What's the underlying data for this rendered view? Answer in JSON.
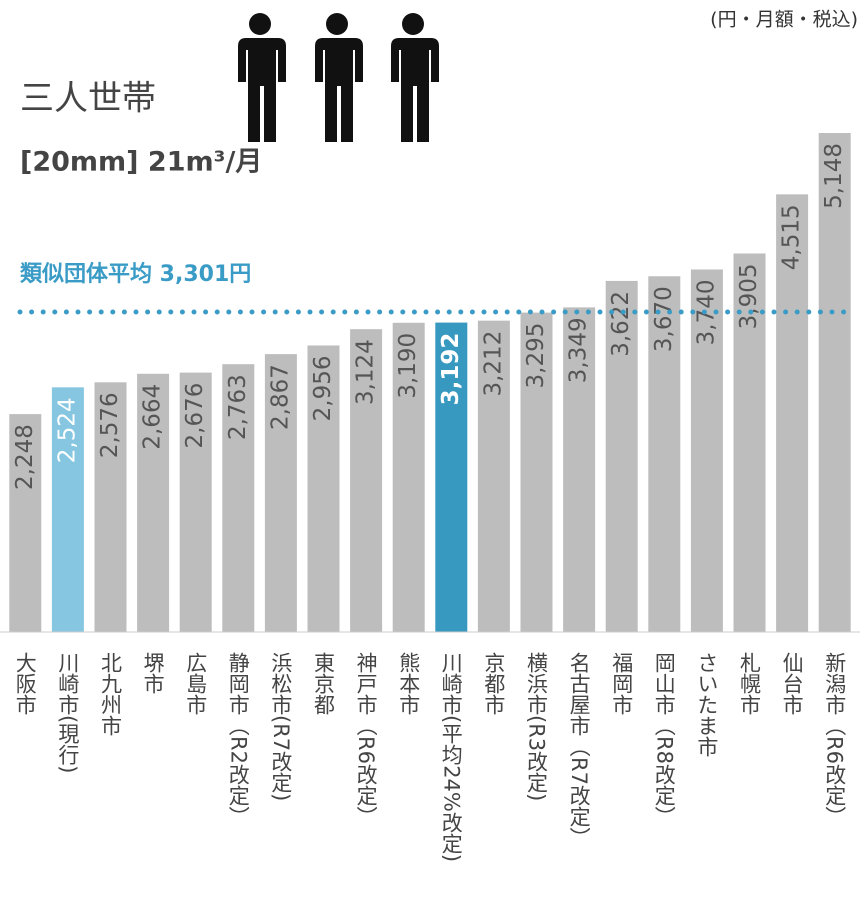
{
  "chart_data": {
    "type": "bar",
    "title": "三人世帯",
    "subtitle": "[20mm] 21m³/月",
    "unit_note": "(円・月額・税込)",
    "categories": [
      "大阪市",
      "川崎市(現行)",
      "北九州市",
      "堺市",
      "広島市",
      "静岡市（R2改定）",
      "浜松市(R7改定)",
      "東京都",
      "神戸市（R6改定）",
      "熊本市",
      "川崎市(平均24%改定)",
      "京都市",
      "横浜市(R3改定)",
      "名古屋市（R7改定）",
      "福岡市",
      "岡山市（R8改定）",
      "さいたま市",
      "札幌市",
      "仙台市",
      "新潟市（R6改定）"
    ],
    "values": [
      2248,
      2524,
      2576,
      2664,
      2676,
      2763,
      2867,
      2956,
      3124,
      3190,
      3192,
      3212,
      3295,
      3349,
      3622,
      3670,
      3740,
      3905,
      4515,
      5148
    ],
    "value_labels": [
      "2,248",
      "2,524",
      "2,576",
      "2,664",
      "2,676",
      "2,763",
      "2,867",
      "2,956",
      "3,124",
      "3,190",
      "3,192",
      "3,212",
      "3,295",
      "3,349",
      "3,622",
      "3,670",
      "3,740",
      "3,905",
      "4,515",
      "5,148"
    ],
    "colors": [
      "#bdbdbd",
      "#86c6e0",
      "#bdbdbd",
      "#bdbdbd",
      "#bdbdbd",
      "#bdbdbd",
      "#bdbdbd",
      "#bdbdbd",
      "#bdbdbd",
      "#bdbdbd",
      "#3798c0",
      "#bdbdbd",
      "#bdbdbd",
      "#bdbdbd",
      "#bdbdbd",
      "#bdbdbd",
      "#bdbdbd",
      "#bdbdbd",
      "#bdbdbd",
      "#bdbdbd"
    ],
    "average": {
      "value": 3301,
      "label": "類似団体平均 3,301円",
      "color": "#3a9cc6"
    }
  }
}
